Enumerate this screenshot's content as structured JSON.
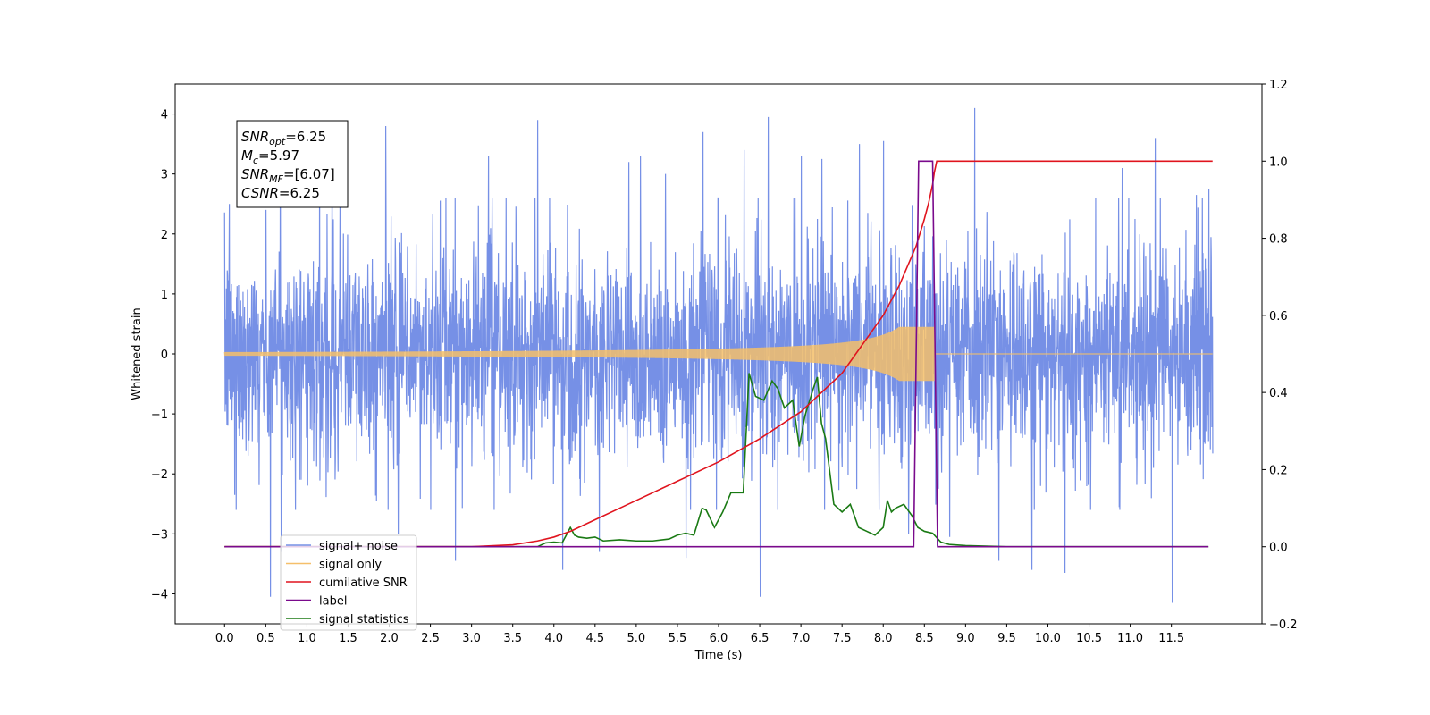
{
  "chart_data": {
    "type": "line",
    "xlabel": "Time (s)",
    "ylabel": "Whitened strain",
    "xlim": [
      -0.6,
      12.6
    ],
    "ylim": [
      -4.5,
      4.5
    ],
    "y2lim": [
      -0.2,
      1.2
    ],
    "xticks": [
      0.0,
      0.5,
      1.0,
      1.5,
      2.0,
      2.5,
      3.0,
      3.5,
      4.0,
      4.5,
      5.0,
      5.5,
      6.0,
      6.5,
      7.0,
      7.5,
      8.0,
      8.5,
      9.0,
      9.5,
      10.0,
      10.5,
      11.0,
      11.5
    ],
    "xtick_labels": [
      "0.0",
      "0.5",
      "1.0",
      "1.5",
      "2.0",
      "2.5",
      "3.0",
      "3.5",
      "4.0",
      "4.5",
      "5.0",
      "5.5",
      "6.0",
      "6.5",
      "7.0",
      "7.5",
      "8.0",
      "8.5",
      "9.0",
      "9.5",
      "10.0",
      "10.5",
      "11.0",
      "11.5"
    ],
    "yticks": [
      -4,
      -3,
      -2,
      -1,
      0,
      1,
      2,
      3,
      4
    ],
    "ytick_labels": [
      "−4",
      "−3",
      "−2",
      "−1",
      "0",
      "1",
      "2",
      "3",
      "4"
    ],
    "y2ticks": [
      -0.2,
      0.0,
      0.2,
      0.4,
      0.6,
      0.8,
      1.0,
      1.2
    ],
    "y2tick_labels": [
      "−0.2",
      "0.0",
      "0.2",
      "0.4",
      "0.6",
      "0.8",
      "1.0",
      "1.2"
    ],
    "grid": false,
    "legend_position": "lower-left",
    "info_box": {
      "lines": [
        {
          "main": "SNR",
          "sub": "opt",
          "value": "=6.25"
        },
        {
          "main": "M",
          "sub": "c",
          "value": "=5.97"
        },
        {
          "main": "SNR",
          "sub": "MF",
          "value": "=[6.07]"
        },
        {
          "main": "CSNR",
          "sub": "",
          "value": "=6.25"
        }
      ]
    },
    "noise_summary": {
      "x_range": [
        0.0,
        12.0
      ],
      "typical_amplitude": 1.3,
      "spike_max": 4.1,
      "spike_min": -4.1
    },
    "series": [
      {
        "name": "signal+ noise",
        "axis": "left",
        "color": "#7690e6",
        "style": "noise",
        "peaks": [
          [
            0.05,
            2.5
          ],
          [
            0.12,
            -2.35
          ],
          [
            0.5,
            2.4
          ],
          [
            0.55,
            -4.05
          ],
          [
            0.67,
            3.25
          ],
          [
            0.68,
            -3.3
          ],
          [
            1.15,
            3.2
          ],
          [
            1.3,
            3.25
          ],
          [
            1.4,
            3.1
          ],
          [
            1.95,
            3.8
          ],
          [
            2.1,
            -3.0
          ],
          [
            2.8,
            -3.45
          ],
          [
            3.2,
            3.3
          ],
          [
            3.8,
            3.9
          ],
          [
            4.1,
            -3.6
          ],
          [
            4.55,
            -3.3
          ],
          [
            4.9,
            3.2
          ],
          [
            5.05,
            3.3
          ],
          [
            5.35,
            3.0
          ],
          [
            5.6,
            -3.4
          ],
          [
            5.8,
            3.7
          ],
          [
            6.3,
            3.4
          ],
          [
            6.5,
            -4.05
          ],
          [
            6.6,
            3.95
          ],
          [
            7.0,
            3.3
          ],
          [
            7.25,
            3.25
          ],
          [
            7.7,
            3.5
          ],
          [
            8.0,
            3.55
          ],
          [
            8.3,
            -3.0
          ],
          [
            8.65,
            -3.2
          ],
          [
            8.8,
            -3.05
          ],
          [
            9.1,
            4.1
          ],
          [
            9.4,
            -3.45
          ],
          [
            9.8,
            -3.6
          ],
          [
            10.2,
            -3.65
          ],
          [
            10.9,
            3.1
          ],
          [
            11.3,
            3.6
          ],
          [
            11.5,
            -4.15
          ],
          [
            11.8,
            2.65
          ],
          [
            11.95,
            2.75
          ]
        ]
      },
      {
        "name": "signal only",
        "axis": "left",
        "color": "#f5bf6a",
        "style": "chirp",
        "chirp": {
          "t_merge": 8.62,
          "envelope_start": 0.0,
          "envelope_end": 0.45,
          "cutoff": 8.62
        }
      },
      {
        "name": "cumilative SNR",
        "axis": "right",
        "color": "#e0141e",
        "x": [
          0.0,
          3.0,
          3.5,
          3.8,
          4.0,
          4.2,
          4.5,
          4.8,
          5.0,
          5.5,
          6.0,
          6.5,
          7.0,
          7.5,
          8.0,
          8.2,
          8.4,
          8.5,
          8.55,
          8.6,
          8.62,
          8.65,
          12.0
        ],
        "values": [
          0.0,
          0.0,
          0.005,
          0.015,
          0.025,
          0.04,
          0.07,
          0.1,
          0.12,
          0.17,
          0.22,
          0.28,
          0.35,
          0.45,
          0.6,
          0.68,
          0.78,
          0.85,
          0.89,
          0.94,
          0.97,
          1.0,
          1.0
        ]
      },
      {
        "name": "label",
        "axis": "right",
        "color": "#7a0a8c",
        "x": [
          0.0,
          8.37,
          8.43,
          8.6,
          8.66,
          11.95
        ],
        "values": [
          0.0,
          0.0,
          1.0,
          1.0,
          0.0,
          0.0
        ]
      },
      {
        "name": "signal statistics",
        "axis": "right",
        "color": "#1a7a14",
        "x": [
          0.0,
          3.5,
          3.8,
          3.9,
          4.0,
          4.1,
          4.15,
          4.2,
          4.25,
          4.3,
          4.4,
          4.5,
          4.6,
          4.8,
          5.0,
          5.2,
          5.4,
          5.5,
          5.6,
          5.7,
          5.8,
          5.85,
          5.95,
          6.05,
          6.15,
          6.3,
          6.37,
          6.45,
          6.55,
          6.65,
          6.72,
          6.8,
          6.9,
          6.98,
          7.05,
          7.15,
          7.2,
          7.25,
          7.3,
          7.4,
          7.5,
          7.6,
          7.7,
          7.8,
          7.9,
          8.0,
          8.05,
          8.1,
          8.15,
          8.25,
          8.35,
          8.42,
          8.5,
          8.6,
          8.7,
          8.8,
          9.0,
          9.5,
          11.95
        ],
        "values": [
          0.0,
          0.0,
          0.0,
          0.01,
          0.012,
          0.01,
          0.03,
          0.05,
          0.03,
          0.025,
          0.022,
          0.025,
          0.015,
          0.018,
          0.015,
          0.015,
          0.02,
          0.03,
          0.035,
          0.03,
          0.1,
          0.095,
          0.05,
          0.09,
          0.14,
          0.14,
          0.45,
          0.39,
          0.38,
          0.43,
          0.41,
          0.36,
          0.38,
          0.26,
          0.34,
          0.41,
          0.44,
          0.32,
          0.28,
          0.11,
          0.09,
          0.11,
          0.05,
          0.04,
          0.03,
          0.05,
          0.12,
          0.09,
          0.1,
          0.11,
          0.08,
          0.05,
          0.04,
          0.035,
          0.012,
          0.006,
          0.003,
          0.0,
          0.0
        ]
      }
    ]
  }
}
